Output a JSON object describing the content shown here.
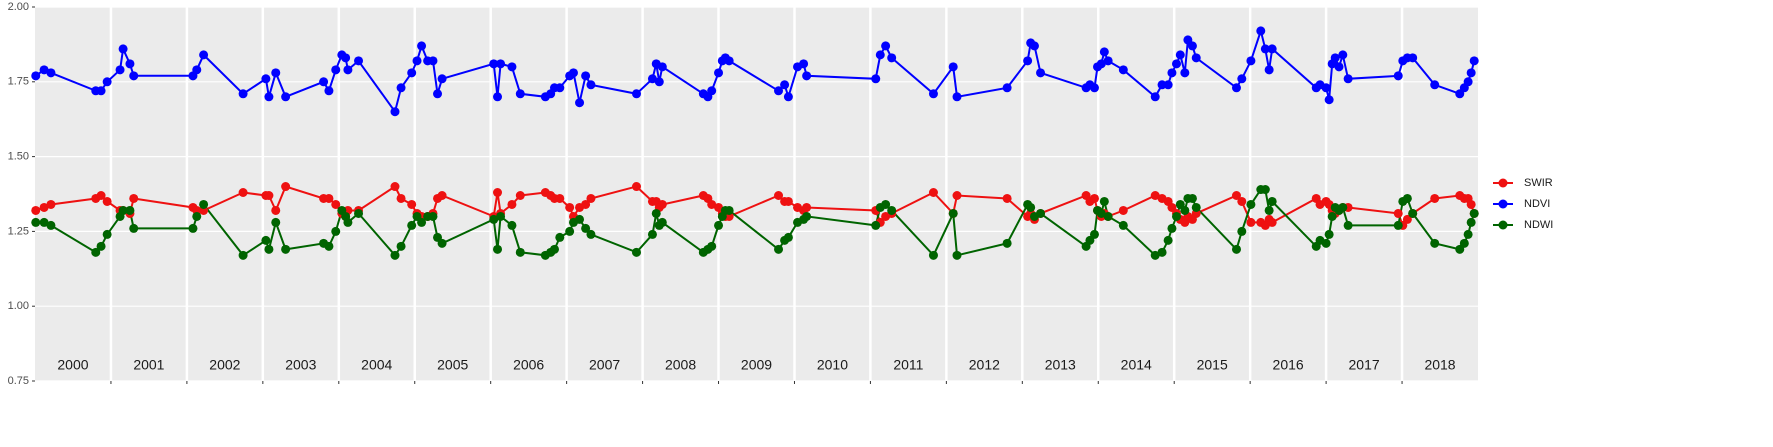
{
  "chart_data": {
    "type": "line",
    "year_labels": [
      "2000",
      "2001",
      "2002",
      "2003",
      "2004",
      "2005",
      "2006",
      "2007",
      "2008",
      "2009",
      "2010",
      "2011",
      "2012",
      "2013",
      "2014",
      "2015",
      "2016",
      "2017",
      "2018"
    ],
    "xlim": [
      2000,
      2019
    ],
    "xticks": [
      2001,
      2002,
      2003,
      2004,
      2005,
      2006,
      2007,
      2008,
      2009,
      2010,
      2011,
      2012,
      2013,
      2014,
      2015,
      2016,
      2017,
      2018
    ],
    "ylim": [
      0.75,
      2.0
    ],
    "yticks": [
      0.75,
      {
        "value": 1.0,
        "label": "1.00"
      },
      1.25,
      {
        "value": 1.5,
        "label": "1.50"
      },
      1.75,
      {
        "value": 2.0,
        "label": "2.00"
      }
    ],
    "grid": true,
    "legend": "right",
    "x": [
      2000.01,
      2000.12,
      2000.21,
      2000.8,
      2000.87,
      2000.95,
      2001.12,
      2001.16,
      2001.25,
      2001.3,
      2002.08,
      2002.13,
      2002.22,
      2002.74,
      2003.04,
      2003.08,
      2003.17,
      2003.3,
      2003.8,
      2003.87,
      2003.96,
      2004.04,
      2004.09,
      2004.12,
      2004.26,
      2004.74,
      2004.82,
      2004.96,
      2005.03,
      2005.09,
      2005.17,
      2005.24,
      2005.3,
      2005.36,
      2006.04,
      2006.09,
      2006.13,
      2006.28,
      2006.39,
      2006.72,
      2006.79,
      2006.84,
      2006.91,
      2007.04,
      2007.09,
      2007.17,
      2007.25,
      2007.32,
      2007.92,
      2008.13,
      2008.18,
      2008.22,
      2008.26,
      2008.8,
      2008.86,
      2008.91,
      2009.0,
      2009.05,
      2009.09,
      2009.14,
      2009.79,
      2009.87,
      2009.92,
      2010.04,
      2010.12,
      2010.16,
      2011.07,
      2011.13,
      2011.2,
      2011.28,
      2011.83,
      2012.09,
      2012.14,
      2012.8,
      2013.07,
      2013.11,
      2013.16,
      2013.24,
      2013.84,
      2013.89,
      2013.95,
      2013.99,
      2014.04,
      2014.08,
      2014.13,
      2014.33,
      2014.75,
      2014.84,
      2014.92,
      2014.97,
      2015.03,
      2015.08,
      2015.14,
      2015.18,
      2015.24,
      2015.29,
      2015.82,
      2015.89,
      2016.01,
      2016.14,
      2016.2,
      2016.25,
      2016.29,
      2016.87,
      2016.92,
      2017.0,
      2017.04,
      2017.08,
      2017.12,
      2017.17,
      2017.22,
      2017.29,
      2017.95,
      2018.01,
      2018.07,
      2018.14,
      2018.43,
      2018.76,
      2018.82,
      2018.87,
      2018.91,
      2018.95
    ],
    "series": [
      {
        "name": "SWIR",
        "color": "#ee1111",
        "values": [
          1.32,
          1.33,
          1.34,
          1.36,
          1.37,
          1.35,
          1.32,
          1.32,
          1.31,
          1.36,
          1.33,
          1.32,
          1.32,
          1.38,
          1.37,
          1.37,
          1.32,
          1.4,
          1.36,
          1.36,
          1.34,
          1.31,
          1.3,
          1.32,
          1.32,
          1.4,
          1.36,
          1.34,
          1.31,
          1.3,
          1.3,
          1.31,
          1.36,
          1.37,
          1.3,
          1.38,
          1.31,
          1.34,
          1.37,
          1.38,
          1.37,
          1.36,
          1.36,
          1.33,
          1.3,
          1.33,
          1.34,
          1.36,
          1.4,
          1.35,
          1.35,
          1.33,
          1.34,
          1.37,
          1.36,
          1.34,
          1.33,
          1.31,
          1.3,
          1.3,
          1.37,
          1.35,
          1.35,
          1.33,
          1.32,
          1.33,
          1.32,
          1.28,
          1.3,
          1.31,
          1.38,
          1.31,
          1.37,
          1.36,
          1.3,
          1.31,
          1.29,
          1.31,
          1.37,
          1.35,
          1.36,
          1.32,
          1.3,
          1.31,
          1.3,
          1.32,
          1.37,
          1.36,
          1.35,
          1.33,
          1.31,
          1.29,
          1.28,
          1.3,
          1.29,
          1.31,
          1.37,
          1.35,
          1.28,
          1.28,
          1.27,
          1.29,
          1.28,
          1.36,
          1.34,
          1.35,
          1.34,
          1.32,
          1.31,
          1.32,
          1.33,
          1.33,
          1.31,
          1.27,
          1.29,
          1.31,
          1.36,
          1.37,
          1.36,
          1.36,
          1.34,
          1.31
        ]
      },
      {
        "name": "NDVI",
        "color": "#0000ff",
        "values": [
          1.77,
          1.79,
          1.78,
          1.72,
          1.72,
          1.75,
          1.79,
          1.86,
          1.81,
          1.77,
          1.77,
          1.79,
          1.84,
          1.71,
          1.76,
          1.7,
          1.78,
          1.7,
          1.75,
          1.72,
          1.79,
          1.84,
          1.83,
          1.79,
          1.82,
          1.65,
          1.73,
          1.78,
          1.82,
          1.87,
          1.82,
          1.82,
          1.71,
          1.76,
          1.81,
          1.7,
          1.81,
          1.8,
          1.71,
          1.7,
          1.71,
          1.73,
          1.73,
          1.77,
          1.78,
          1.68,
          1.77,
          1.74,
          1.71,
          1.76,
          1.81,
          1.75,
          1.8,
          1.71,
          1.7,
          1.72,
          1.78,
          1.82,
          1.83,
          1.82,
          1.72,
          1.74,
          1.7,
          1.8,
          1.81,
          1.77,
          1.76,
          1.84,
          1.87,
          1.83,
          1.71,
          1.8,
          1.7,
          1.73,
          1.82,
          1.88,
          1.87,
          1.78,
          1.73,
          1.74,
          1.73,
          1.8,
          1.81,
          1.85,
          1.82,
          1.79,
          1.7,
          1.74,
          1.74,
          1.78,
          1.81,
          1.84,
          1.78,
          1.89,
          1.87,
          1.83,
          1.73,
          1.76,
          1.82,
          1.92,
          1.86,
          1.79,
          1.86,
          1.73,
          1.74,
          1.73,
          1.69,
          1.81,
          1.83,
          1.8,
          1.84,
          1.76,
          1.77,
          1.82,
          1.83,
          1.83,
          1.74,
          1.71,
          1.73,
          1.75,
          1.78,
          1.82
        ]
      },
      {
        "name": "NDWI",
        "color": "#006400",
        "values": [
          1.28,
          1.28,
          1.27,
          1.18,
          1.2,
          1.24,
          1.3,
          1.32,
          1.32,
          1.26,
          1.26,
          1.3,
          1.34,
          1.17,
          1.22,
          1.19,
          1.28,
          1.19,
          1.21,
          1.2,
          1.25,
          1.32,
          1.3,
          1.28,
          1.31,
          1.17,
          1.2,
          1.27,
          1.3,
          1.28,
          1.3,
          1.3,
          1.23,
          1.21,
          1.29,
          1.19,
          1.3,
          1.27,
          1.18,
          1.17,
          1.18,
          1.19,
          1.23,
          1.25,
          1.28,
          1.29,
          1.26,
          1.24,
          1.18,
          1.24,
          1.31,
          1.27,
          1.28,
          1.18,
          1.19,
          1.2,
          1.27,
          1.3,
          1.32,
          1.32,
          1.19,
          1.22,
          1.23,
          1.28,
          1.29,
          1.3,
          1.27,
          1.33,
          1.34,
          1.32,
          1.17,
          1.31,
          1.17,
          1.21,
          1.34,
          1.33,
          1.3,
          1.31,
          1.2,
          1.22,
          1.24,
          1.32,
          1.31,
          1.35,
          1.3,
          1.27,
          1.17,
          1.18,
          1.22,
          1.26,
          1.3,
          1.34,
          1.32,
          1.36,
          1.36,
          1.33,
          1.19,
          1.25,
          1.34,
          1.39,
          1.39,
          1.32,
          1.35,
          1.2,
          1.22,
          1.21,
          1.24,
          1.3,
          1.33,
          1.32,
          1.33,
          1.27,
          1.27,
          1.35,
          1.36,
          1.31,
          1.21,
          1.19,
          1.21,
          1.24,
          1.28,
          1.31
        ]
      }
    ]
  }
}
